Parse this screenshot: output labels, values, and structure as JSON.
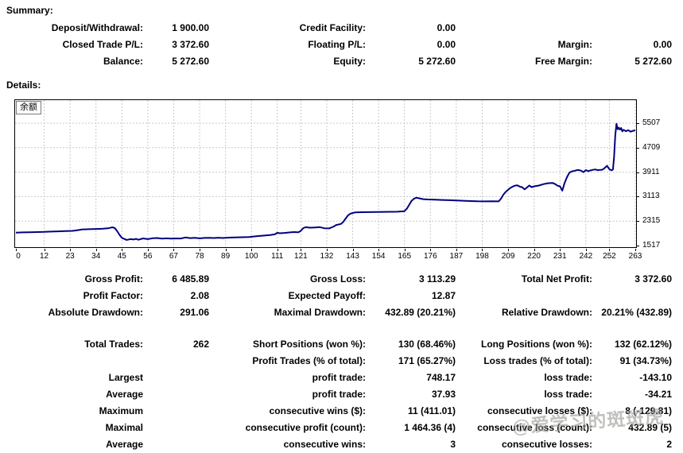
{
  "summary": {
    "heading": "Summary:",
    "rows": [
      [
        "Deposit/Withdrawal:",
        "1 900.00",
        "Credit Facility:",
        "0.00",
        "",
        ""
      ],
      [
        "Closed Trade P/L:",
        "3 372.60",
        "Floating P/L:",
        "0.00",
        "Margin:",
        "0.00"
      ],
      [
        "Balance:",
        "5 272.60",
        "Equity:",
        "5 272.60",
        "Free Margin:",
        "5 272.60"
      ]
    ]
  },
  "details": {
    "heading": "Details:",
    "stats_top": {
      "rows": [
        [
          "Gross Profit:",
          "6 485.89",
          "Gross Loss:",
          "3 113.29",
          "Total Net Profit:",
          "3 372.60"
        ],
        [
          "Profit Factor:",
          "2.08",
          "Expected Payoff:",
          "12.87",
          "",
          ""
        ],
        [
          "Absolute Drawdown:",
          "291.06",
          "Maximal Drawdown:",
          "432.89 (20.21%)",
          "Relative Drawdown:",
          "20.21% (432.89)"
        ]
      ]
    },
    "stats_trades": {
      "rows": [
        [
          "Total Trades:",
          "262",
          "Short Positions (won %):",
          "130 (68.46%)",
          "Long Positions (won %):",
          "132 (62.12%)"
        ],
        [
          "",
          "",
          "Profit Trades (% of total):",
          "171 (65.27%)",
          "Loss trades (% of total):",
          "91 (34.73%)"
        ],
        [
          "Largest",
          "",
          "profit trade:",
          "748.17",
          "loss trade:",
          "-143.10"
        ],
        [
          "Average",
          "",
          "profit trade:",
          "37.93",
          "loss trade:",
          "-34.21"
        ],
        [
          "Maximum",
          "",
          "consecutive wins ($):",
          "11 (411.01)",
          "consecutive losses ($):",
          "8 (-129.81)"
        ],
        [
          "Maximal",
          "",
          "consecutive profit (count):",
          "1 464.36 (4)",
          "consecutive loss (count):",
          "432.89 (5)"
        ],
        [
          "Average",
          "",
          "consecutive wins:",
          "3",
          "consecutive losses:",
          "2"
        ]
      ]
    }
  },
  "chart_data": {
    "type": "line",
    "legend": "余额",
    "title": "",
    "xlabel": "",
    "ylabel": "",
    "grid": "dashed",
    "legend_position": "top-left",
    "line_color": "#000080",
    "grid_color": "#c9c9c9",
    "xlim": [
      0,
      263
    ],
    "ylim": [
      1517,
      5507
    ],
    "x_ticks": [
      0,
      12,
      23,
      34,
      45,
      56,
      67,
      78,
      89,
      100,
      111,
      121,
      132,
      143,
      154,
      165,
      176,
      187,
      198,
      209,
      220,
      231,
      242,
      252,
      263
    ],
    "y_ticks": [
      1517,
      2315,
      3113,
      3911,
      4709,
      5507
    ],
    "series": [
      {
        "name": "余额",
        "points": [
          [
            0,
            1940
          ],
          [
            3,
            1946
          ],
          [
            6,
            1952
          ],
          [
            9,
            1958
          ],
          [
            12,
            1963
          ],
          [
            15,
            1974
          ],
          [
            18,
            1981
          ],
          [
            21,
            1989
          ],
          [
            24,
            1996
          ],
          [
            26,
            2018
          ],
          [
            28,
            2040
          ],
          [
            31,
            2051
          ],
          [
            34,
            2058
          ],
          [
            37,
            2066
          ],
          [
            39,
            2080
          ],
          [
            40,
            2096
          ],
          [
            41,
            2114
          ],
          [
            42,
            2086
          ],
          [
            43,
            1985
          ],
          [
            44,
            1866
          ],
          [
            45,
            1768
          ],
          [
            46,
            1734
          ],
          [
            47,
            1702
          ],
          [
            48,
            1716
          ],
          [
            49,
            1726
          ],
          [
            50,
            1714
          ],
          [
            51,
            1736
          ],
          [
            52,
            1706
          ],
          [
            54,
            1750
          ],
          [
            56,
            1726
          ],
          [
            58,
            1756
          ],
          [
            60,
            1762
          ],
          [
            62,
            1742
          ],
          [
            64,
            1752
          ],
          [
            66,
            1746
          ],
          [
            68,
            1750
          ],
          [
            70,
            1748
          ],
          [
            72,
            1781
          ],
          [
            74,
            1761
          ],
          [
            76,
            1768
          ],
          [
            78,
            1753
          ],
          [
            80,
            1766
          ],
          [
            82,
            1770
          ],
          [
            84,
            1762
          ],
          [
            86,
            1773
          ],
          [
            88,
            1763
          ],
          [
            90,
            1776
          ],
          [
            93,
            1783
          ],
          [
            96,
            1790
          ],
          [
            99,
            1798
          ],
          [
            102,
            1820
          ],
          [
            104,
            1836
          ],
          [
            106,
            1849
          ],
          [
            108,
            1862
          ],
          [
            110,
            1885
          ],
          [
            111,
            1933
          ],
          [
            112,
            1918
          ],
          [
            114,
            1929
          ],
          [
            116,
            1944
          ],
          [
            118,
            1957
          ],
          [
            120,
            1949
          ],
          [
            121,
            1998
          ],
          [
            122,
            2087
          ],
          [
            123,
            2115
          ],
          [
            125,
            2099
          ],
          [
            127,
            2107
          ],
          [
            129,
            2117
          ],
          [
            131,
            2083
          ],
          [
            133,
            2077
          ],
          [
            135,
            2139
          ],
          [
            136,
            2187
          ],
          [
            138,
            2221
          ],
          [
            139,
            2288
          ],
          [
            140,
            2399
          ],
          [
            141,
            2499
          ],
          [
            142,
            2557
          ],
          [
            144,
            2597
          ],
          [
            147,
            2605
          ],
          [
            150,
            2609
          ],
          [
            153,
            2612
          ],
          [
            156,
            2615
          ],
          [
            159,
            2617
          ],
          [
            162,
            2620
          ],
          [
            165,
            2639
          ],
          [
            166,
            2719
          ],
          [
            167,
            2848
          ],
          [
            168,
            2973
          ],
          [
            169,
            3044
          ],
          [
            170,
            3077
          ],
          [
            171,
            3061
          ],
          [
            173,
            3031
          ],
          [
            175,
            3019
          ],
          [
            178,
            3011
          ],
          [
            181,
            3003
          ],
          [
            184,
            2997
          ],
          [
            187,
            2989
          ],
          [
            190,
            2977
          ],
          [
            193,
            2967
          ],
          [
            196,
            2959
          ],
          [
            199,
            2957
          ],
          [
            202,
            2961
          ],
          [
            205,
            2957
          ],
          [
            206,
            3049
          ],
          [
            207,
            3178
          ],
          [
            208,
            3269
          ],
          [
            209,
            3339
          ],
          [
            210,
            3399
          ],
          [
            211,
            3441
          ],
          [
            212,
            3474
          ],
          [
            213,
            3479
          ],
          [
            214,
            3437
          ],
          [
            215,
            3419
          ],
          [
            216,
            3351
          ],
          [
            217,
            3409
          ],
          [
            218,
            3477
          ],
          [
            219,
            3421
          ],
          [
            220,
            3447
          ],
          [
            222,
            3474
          ],
          [
            224,
            3519
          ],
          [
            226,
            3551
          ],
          [
            228,
            3557
          ],
          [
            229,
            3519
          ],
          [
            230,
            3469
          ],
          [
            231,
            3451
          ],
          [
            232,
            3307
          ],
          [
            233,
            3559
          ],
          [
            234,
            3747
          ],
          [
            235,
            3894
          ],
          [
            236,
            3934
          ],
          [
            237,
            3951
          ],
          [
            238,
            3974
          ],
          [
            239,
            3981
          ],
          [
            240,
            3957
          ],
          [
            241,
            3911
          ],
          [
            242,
            3979
          ],
          [
            243,
            3941
          ],
          [
            244,
            3967
          ],
          [
            245,
            3987
          ],
          [
            246,
            3999
          ],
          [
            247,
            3977
          ],
          [
            248,
            3983
          ],
          [
            249,
            3989
          ],
          [
            250,
            4047
          ],
          [
            251,
            4119
          ],
          [
            252,
            4004
          ],
          [
            253,
            3971
          ],
          [
            253.5,
            3999
          ],
          [
            254,
            4400
          ],
          [
            254.5,
            5100
          ],
          [
            255,
            5488
          ],
          [
            255.5,
            5310
          ],
          [
            256,
            5362
          ],
          [
            256.5,
            5298
          ],
          [
            257,
            5348
          ],
          [
            257.5,
            5241
          ],
          [
            258,
            5292
          ],
          [
            259,
            5246
          ],
          [
            260,
            5278
          ],
          [
            261,
            5229
          ],
          [
            262,
            5258
          ],
          [
            263,
            5272.6
          ]
        ]
      }
    ]
  },
  "watermark": "@爱学习的斑斑虎"
}
